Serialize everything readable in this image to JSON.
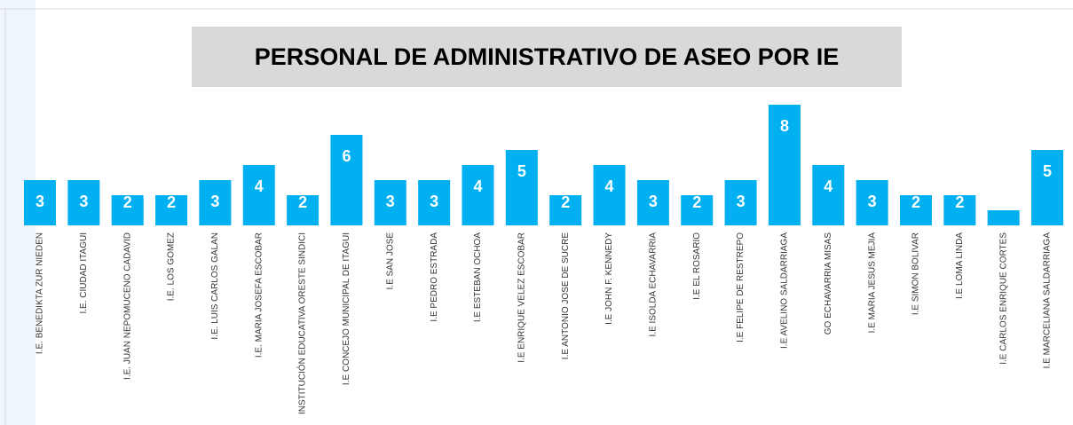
{
  "chart_data": {
    "type": "bar",
    "title": "PERSONAL DE ADMINISTRATIVO DE ASEO POR IE",
    "categories": [
      "I.E. BENEDIKTA ZUR NIEDEN",
      "I.E. CIUDAD ITAGUI",
      "I.E. JUAN NEPOMUCENO CADAVID",
      "I.E. LOS GOMEZ",
      "I.E. LUIS CARLOS GALAN",
      "I.E. MARIA JOSEFA ESCOBAR",
      "INSTITUCIÓN EDUCATIVA ORESTE SINDICI",
      "I.E CONCEJO MUNICIPAL DE ITAGUI",
      "I.E SAN JOSE",
      "I.E PEDRO ESTRADA",
      "I.E ESTEBAN OCHOA",
      "I.E ENRIQUE VELEZ ESCOBAR",
      "I.E ANTONIO JOSE DE SUCRE",
      "I.E JOHN F. KENNEDY",
      "I.E ISOLDA ECHAVARRIA",
      "I.E EL ROSARIO",
      "I.E FELIPE DE RESTREPO",
      "I.E AVELINO SALDARRIAGA",
      "GO ECHAVARRIA MISAS",
      "I.E MARIA JESUS MEJIA",
      "I.E SIMON BOLIVAR",
      "I.E LOMA LINDA",
      "I.E CARLOS ENRIQUE CORTES",
      "I.E MARCELIANA SALDARRIAGA"
    ],
    "values": [
      3,
      3,
      2,
      2,
      3,
      4,
      2,
      6,
      3,
      3,
      4,
      5,
      2,
      4,
      3,
      2,
      3,
      8,
      4,
      3,
      2,
      2,
      1,
      5
    ],
    "value_labels": [
      "3",
      "3",
      "2",
      "2",
      "3",
      "4",
      "2",
      "6",
      "3",
      "3",
      "4",
      "5",
      "2",
      "4",
      "3",
      "2",
      "3",
      "8",
      "4",
      "3",
      "2",
      "2",
      null,
      "5"
    ],
    "color": "#00b0f0",
    "ylim": [
      0,
      8
    ]
  }
}
